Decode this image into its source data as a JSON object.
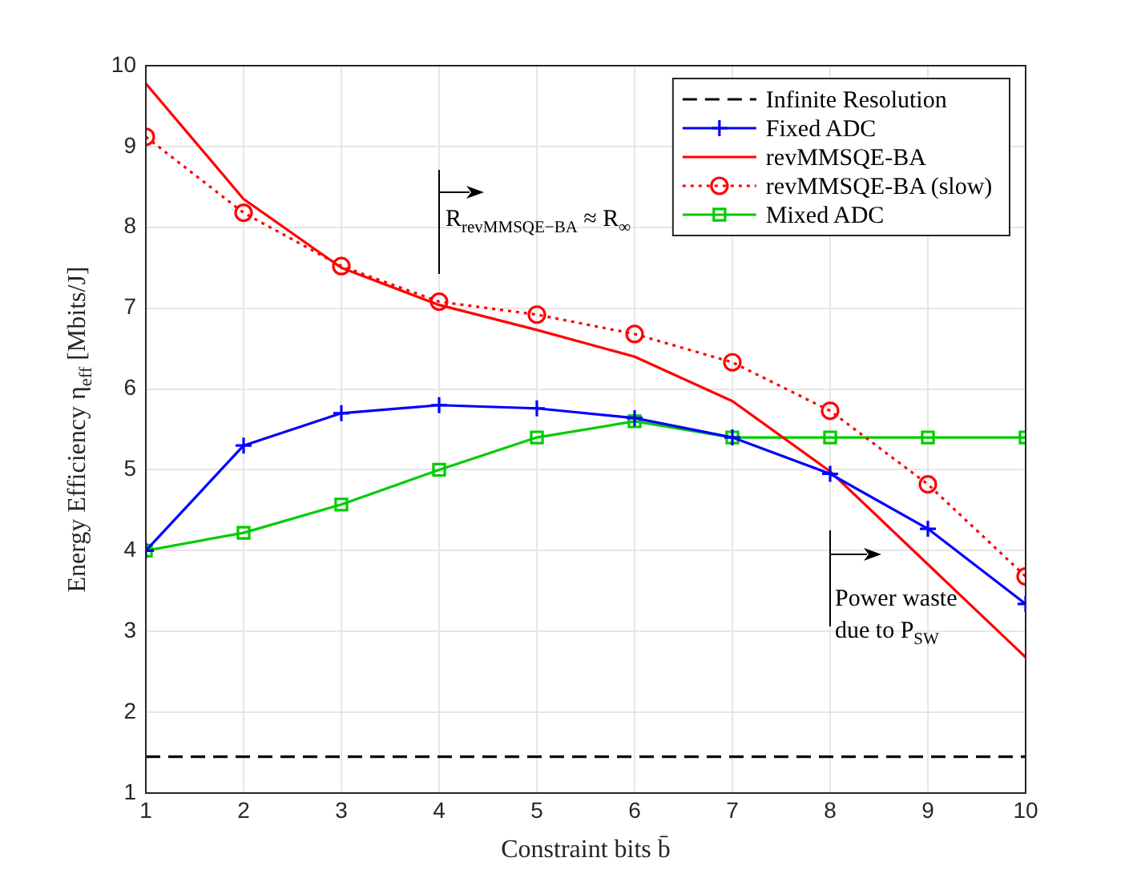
{
  "chart_data": {
    "type": "line",
    "xlabel": "Constraint bits b̄",
    "ylabel": "Energy Efficiency η$_{eff}$ [Mbits/J]",
    "x": [
      1,
      2,
      3,
      4,
      5,
      6,
      7,
      8,
      9,
      10
    ],
    "xlim": [
      1,
      10
    ],
    "xticks": [
      1,
      2,
      3,
      4,
      5,
      6,
      7,
      8,
      9,
      10
    ],
    "ylim": [
      1,
      10
    ],
    "yticks": [
      1,
      2,
      3,
      4,
      5,
      6,
      7,
      8,
      9,
      10
    ],
    "grid": true,
    "legend": "top right",
    "series": [
      {
        "name": "Infinite Resolution",
        "color": "#000000",
        "line_style": "dashed",
        "marker": "none",
        "values": [
          1.45,
          1.45,
          1.45,
          1.45,
          1.45,
          1.45,
          1.45,
          1.45,
          1.45,
          1.45
        ]
      },
      {
        "name": "Fixed ADC",
        "color": "#0000ff",
        "line_style": "solid",
        "marker": "cross",
        "values": [
          4.0,
          5.3,
          5.7,
          5.8,
          5.76,
          5.64,
          5.4,
          4.95,
          4.27,
          3.34
        ]
      },
      {
        "name": "revMMSQE-BA",
        "color": "#ff0000",
        "line_style": "solid",
        "marker": "none",
        "values": [
          9.78,
          8.35,
          7.5,
          7.04,
          6.73,
          6.4,
          5.85,
          4.98,
          3.83,
          2.68
        ]
      },
      {
        "name": "revMMSQE-BA (slow)",
        "color": "#ff0000",
        "line_style": "dotted",
        "marker": "circle",
        "values": [
          9.12,
          8.18,
          7.52,
          7.08,
          6.92,
          6.68,
          6.33,
          5.73,
          4.82,
          3.68
        ]
      },
      {
        "name": "Mixed ADC",
        "color": "#00cc00",
        "line_style": "solid",
        "marker": "square",
        "values": [
          4.0,
          4.22,
          4.57,
          5.0,
          5.4,
          5.6,
          5.4,
          5.4,
          5.4,
          5.4
        ]
      }
    ],
    "annotations": [
      "R$_{revMMSQE−BA}$ ≈ R$_{∞}$",
      "Power waste\ndue to P$_{SW}$"
    ]
  }
}
